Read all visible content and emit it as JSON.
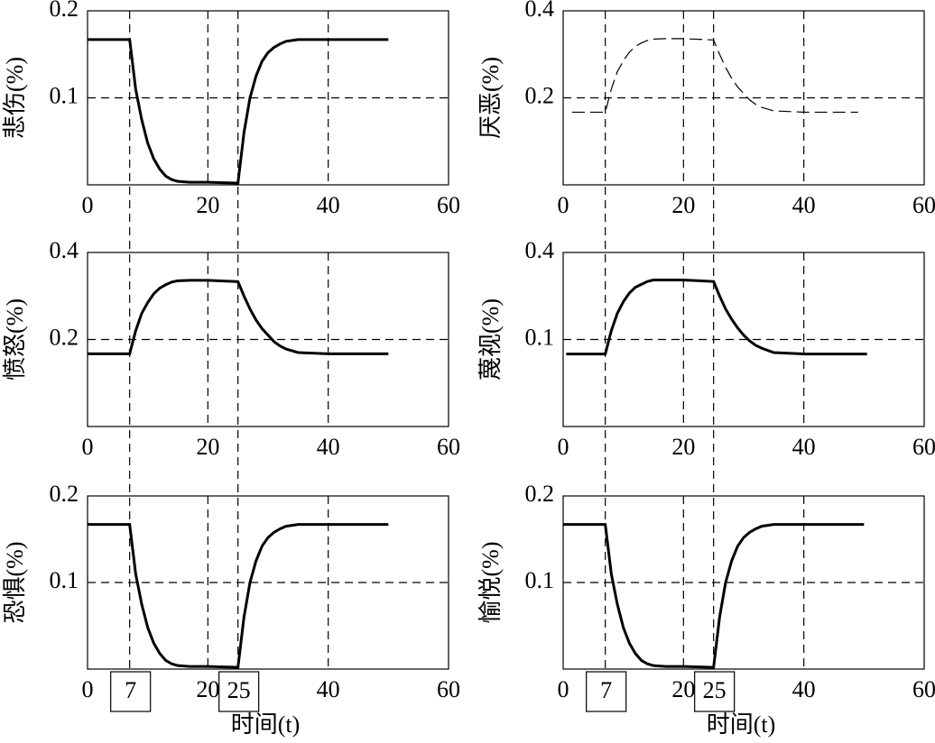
{
  "chart_data": [
    {
      "type": "line",
      "ylabel": "悲伤(%)",
      "xlim": [
        0,
        60
      ],
      "xticks": [
        0,
        20,
        40,
        60
      ],
      "ylim": [
        0,
        0.2
      ],
      "yticks": [
        0.1,
        0.2
      ],
      "grid": true,
      "x": [
        0,
        7,
        8,
        9,
        10,
        11,
        12,
        13,
        14,
        15,
        17,
        20,
        25,
        26,
        27,
        28,
        29,
        30,
        31,
        32,
        33,
        35,
        40,
        45,
        50
      ],
      "series": [
        {
          "color": "#000000",
          "style": "solid",
          "values": [
            0.167,
            0.167,
            0.11,
            0.075,
            0.048,
            0.03,
            0.018,
            0.01,
            0.006,
            0.004,
            0.003,
            0.003,
            0.002,
            0.06,
            0.1,
            0.125,
            0.142,
            0.152,
            0.158,
            0.162,
            0.165,
            0.167,
            0.167,
            0.167,
            0.167
          ]
        }
      ]
    },
    {
      "type": "line",
      "ylabel": "厌恶(%)",
      "xlim": [
        0,
        60
      ],
      "xticks": [
        0,
        20,
        40,
        60
      ],
      "ylim": [
        0,
        0.4
      ],
      "yticks": [
        0.2,
        0.4
      ],
      "grid": true,
      "x": [
        1.5,
        7,
        8,
        9,
        10,
        11,
        12,
        13,
        14,
        15,
        17,
        20,
        25,
        26,
        27,
        28,
        29,
        30,
        31,
        32,
        33,
        35,
        40,
        45,
        49
      ],
      "series": [
        {
          "color": "#000000",
          "style": "dashed",
          "values": [
            0.167,
            0.167,
            0.22,
            0.26,
            0.285,
            0.305,
            0.318,
            0.326,
            0.332,
            0.335,
            0.336,
            0.336,
            0.333,
            0.3,
            0.27,
            0.245,
            0.225,
            0.21,
            0.195,
            0.185,
            0.178,
            0.17,
            0.167,
            0.167,
            0.167
          ]
        }
      ]
    },
    {
      "type": "line",
      "ylabel": "愤怒(%)",
      "xlim": [
        0,
        60
      ],
      "xticks": [
        0,
        20,
        40,
        60
      ],
      "ylim": [
        0,
        0.4
      ],
      "yticks": [
        0.2,
        0.4
      ],
      "grid": true,
      "x": [
        0,
        7,
        8,
        9,
        10,
        11,
        12,
        13,
        14,
        15,
        17,
        20,
        25,
        26,
        27,
        28,
        29,
        30,
        31,
        32,
        33,
        35,
        40,
        45,
        50
      ],
      "series": [
        {
          "color": "#000000",
          "style": "solid",
          "values": [
            0.167,
            0.167,
            0.22,
            0.26,
            0.285,
            0.305,
            0.318,
            0.326,
            0.332,
            0.335,
            0.336,
            0.336,
            0.333,
            0.3,
            0.27,
            0.245,
            0.225,
            0.21,
            0.195,
            0.185,
            0.178,
            0.17,
            0.167,
            0.167,
            0.167
          ]
        }
      ]
    },
    {
      "type": "line",
      "ylabel": "蔑视(%)",
      "xlim": [
        0,
        60
      ],
      "xticks": [
        0,
        20,
        40,
        60
      ],
      "ylim": [
        -0.2,
        0.4
      ],
      "yticks": [
        0.1,
        0.4
      ],
      "grid": true,
      "x": [
        0.5,
        7,
        8,
        9,
        10,
        11,
        12,
        13,
        14,
        15,
        17,
        20,
        25,
        26,
        27,
        28,
        29,
        30,
        31,
        32,
        33,
        35,
        40,
        45,
        50.5
      ],
      "series": [
        {
          "color": "#000000",
          "style": "solid",
          "values": [
            0.05,
            0.05,
            0.13,
            0.19,
            0.23,
            0.26,
            0.28,
            0.29,
            0.3,
            0.305,
            0.305,
            0.305,
            0.3,
            0.25,
            0.205,
            0.17,
            0.14,
            0.115,
            0.095,
            0.08,
            0.07,
            0.055,
            0.05,
            0.05,
            0.05
          ]
        }
      ]
    },
    {
      "type": "line",
      "ylabel": "恐惧(%)",
      "xlabel": "时间(t)",
      "markers": [
        7,
        25
      ],
      "xlim": [
        0,
        60
      ],
      "xticks": [
        0,
        20,
        40,
        60
      ],
      "ylim": [
        0,
        0.2
      ],
      "yticks": [
        0.1,
        0.2
      ],
      "grid": true,
      "x": [
        0,
        7,
        8,
        9,
        10,
        11,
        12,
        13,
        14,
        15,
        17,
        20,
        25,
        26,
        27,
        28,
        29,
        30,
        31,
        32,
        33,
        35,
        40,
        45,
        50
      ],
      "series": [
        {
          "color": "#000000",
          "style": "solid",
          "values": [
            0.167,
            0.167,
            0.11,
            0.075,
            0.048,
            0.03,
            0.018,
            0.01,
            0.006,
            0.004,
            0.003,
            0.003,
            0.002,
            0.06,
            0.1,
            0.125,
            0.142,
            0.152,
            0.158,
            0.162,
            0.165,
            0.167,
            0.167,
            0.167,
            0.167
          ]
        }
      ]
    },
    {
      "type": "line",
      "ylabel": "愉悦(%)",
      "xlabel": "时间(t)",
      "markers": [
        7,
        25
      ],
      "xlim": [
        0,
        60
      ],
      "xticks": [
        0,
        20,
        40,
        60
      ],
      "ylim": [
        0,
        0.2
      ],
      "yticks": [
        0.1,
        0.2
      ],
      "grid": true,
      "x": [
        0,
        7,
        8,
        9,
        10,
        11,
        12,
        13,
        14,
        15,
        17,
        20,
        25,
        26,
        27,
        28,
        29,
        30,
        31,
        32,
        33,
        35,
        40,
        45,
        50
      ],
      "series": [
        {
          "color": "#000000",
          "style": "solid",
          "values": [
            0.167,
            0.167,
            0.11,
            0.075,
            0.048,
            0.03,
            0.018,
            0.01,
            0.006,
            0.004,
            0.003,
            0.003,
            0.002,
            0.06,
            0.1,
            0.125,
            0.142,
            0.152,
            0.158,
            0.162,
            0.165,
            0.167,
            0.167,
            0.167,
            0.167
          ]
        }
      ]
    }
  ]
}
